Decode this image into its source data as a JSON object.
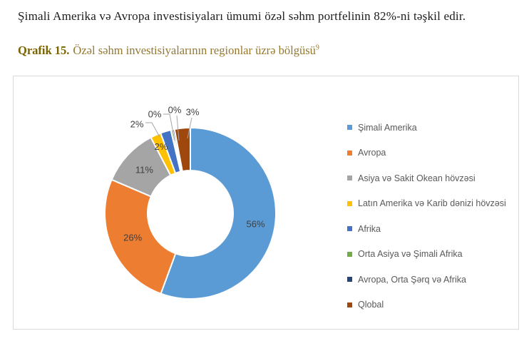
{
  "document": {
    "intro_text": "Şimali Amerika və Avropa investisiyaları ümumi özəl səhm portfelinin 82%-ni təşkil edir.",
    "caption": {
      "prefix": "Qrafik 15.",
      "title": "Özəl səhm investisiyalarının regionlar üzrə bölgüsü",
      "footnote_ref": "9"
    }
  },
  "chart_data": {
    "type": "pie",
    "subtype": "donut",
    "title": "",
    "categories": [
      "Şimali Amerika",
      "Avropa",
      "Asiya və Sakit Okean hövzəsi",
      "Latın Amerika və Karib dənizi hövzəsi",
      "Afrika",
      "Orta Asiya və Şimali Afrika",
      "Avropa, Orta Şərq və Afrika",
      "Qlobal"
    ],
    "values": [
      56,
      26,
      11,
      2,
      2,
      0,
      0,
      3
    ],
    "labels": [
      "56%",
      "26%",
      "11%",
      "2%",
      "2%",
      "0%",
      "0%",
      "3%"
    ],
    "colors": [
      "#5B9BD5",
      "#ED7D31",
      "#A5A5A5",
      "#FFC000",
      "#4472C4",
      "#70AD47",
      "#264478",
      "#9E480E"
    ],
    "label_placement": [
      "inside",
      "inside",
      "inside",
      "inside",
      "outside-leader",
      "outside-leader",
      "outside-leader",
      "outside-leader"
    ],
    "legend_position": "right",
    "start_angle_deg": 0,
    "direction": "clockwise",
    "hole_ratio": 0.5,
    "leader_line_color": "#a6a6a6",
    "slice_border_color": "#ffffff"
  }
}
